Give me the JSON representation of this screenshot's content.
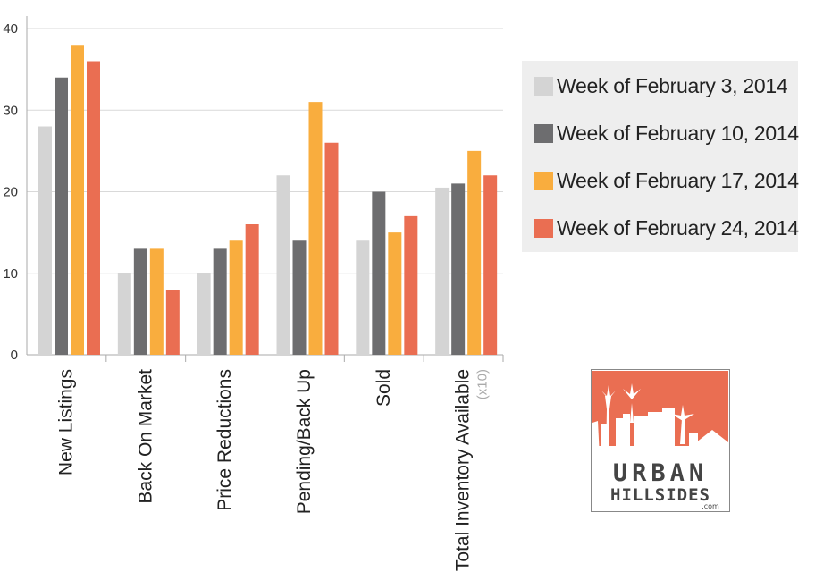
{
  "chart_data": {
    "type": "bar",
    "categories": [
      "New Listings",
      "Back On Market",
      "Price Reductions",
      "Pending/Back Up",
      "Sold",
      "Total Inventory Available"
    ],
    "category_note": {
      "index": 5,
      "text": "(x10)"
    },
    "series": [
      {
        "name": "Week of February 3, 2014",
        "color": "#d4d4d4",
        "values": [
          28,
          10,
          10,
          22,
          14,
          20.5
        ]
      },
      {
        "name": "Week of February 10, 2014",
        "color": "#6d6d6f",
        "values": [
          34,
          13,
          13,
          14,
          20,
          21
        ]
      },
      {
        "name": "Week of February 17, 2014",
        "color": "#f9ad3e",
        "values": [
          38,
          13,
          14,
          31,
          15,
          25
        ]
      },
      {
        "name": "Week of February 24, 2014",
        "color": "#ea6e52",
        "values": [
          36,
          8,
          16,
          26,
          17,
          22
        ]
      }
    ],
    "y_ticks": [
      0,
      10,
      20,
      30,
      40
    ],
    "ylim": [
      0,
      40
    ],
    "grid": true,
    "legend_position": "right"
  },
  "logo": {
    "line1": "URBAN",
    "line2": "HILLSIDES",
    "suffix": ".com",
    "colors": {
      "background": "#ea6e52",
      "text": "#444444",
      "skyline": "#ffffff"
    }
  }
}
